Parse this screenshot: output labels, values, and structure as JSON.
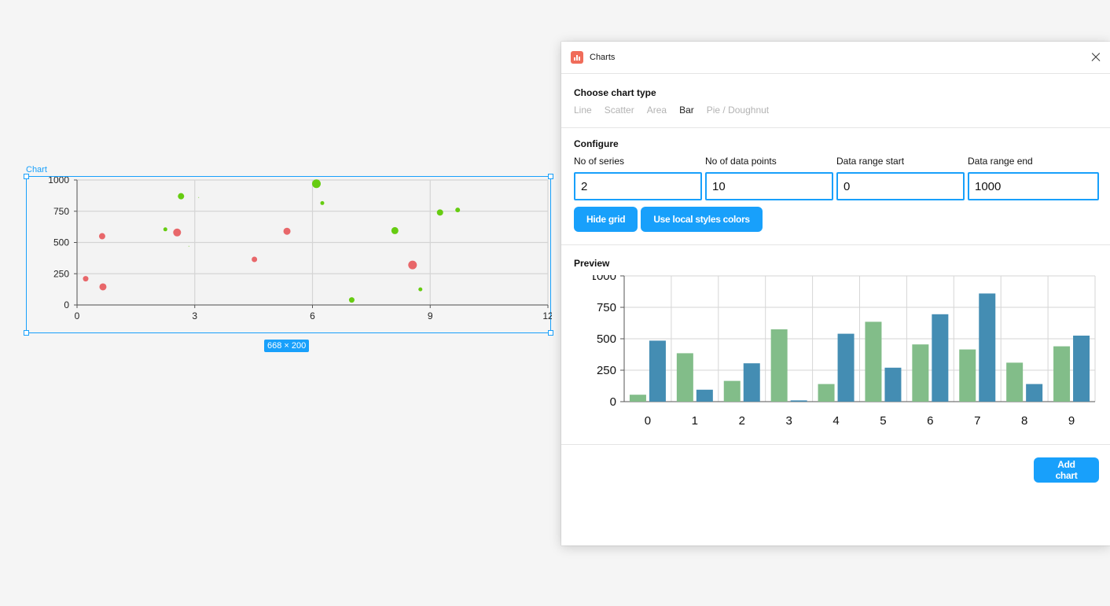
{
  "canvas": {
    "frame_label": "Chart",
    "size_badge": "668 × 200",
    "chart_data": {
      "type": "scatter",
      "x_ticks": [
        "0",
        "3",
        "6",
        "9",
        "12"
      ],
      "y_ticks": [
        "1000",
        "750",
        "500",
        "250",
        "0"
      ],
      "xlim": [
        0,
        12
      ],
      "ylim": [
        0,
        1000
      ],
      "grid": true,
      "series": [
        {
          "color": "#e8676a",
          "points": [
            {
              "x": 0.22,
              "y": 210,
              "r": 3.5
            },
            {
              "x": 0.64,
              "y": 550,
              "r": 4
            },
            {
              "x": 0.66,
              "y": 145,
              "r": 4.5
            },
            {
              "x": 2.55,
              "y": 580,
              "r": 5
            },
            {
              "x": 4.52,
              "y": 365,
              "r": 3.5
            },
            {
              "x": 5.35,
              "y": 590,
              "r": 4.5
            },
            {
              "x": 8.55,
              "y": 320,
              "r": 5.5
            }
          ]
        },
        {
          "color": "#66cc11",
          "points": [
            {
              "x": 2.25,
              "y": 605,
              "r": 2.5
            },
            {
              "x": 2.65,
              "y": 870,
              "r": 4
            },
            {
              "x": 2.85,
              "y": 470,
              "r": 0.5
            },
            {
              "x": 3.1,
              "y": 860,
              "r": 0.5
            },
            {
              "x": 6.1,
              "y": 970,
              "r": 5.5
            },
            {
              "x": 6.25,
              "y": 815,
              "r": 2.5
            },
            {
              "x": 7.0,
              "y": 40,
              "r": 3.5
            },
            {
              "x": 8.1,
              "y": 595,
              "r": 4.5
            },
            {
              "x": 8.75,
              "y": 125,
              "r": 2.5
            },
            {
              "x": 9.25,
              "y": 740,
              "r": 4
            },
            {
              "x": 9.7,
              "y": 760,
              "r": 3
            }
          ]
        }
      ]
    }
  },
  "panel": {
    "title": "Charts",
    "choose_title": "Choose chart type",
    "chart_types": [
      "Line",
      "Scatter",
      "Area",
      "Bar",
      "Pie / Doughnut"
    ],
    "active_type": "Bar",
    "configure_title": "Configure",
    "fields": [
      {
        "label": "No of series",
        "value": "2"
      },
      {
        "label": "No of data points",
        "value": "10"
      },
      {
        "label": "Data range start",
        "value": "0"
      },
      {
        "label": "Data range end",
        "value": "1000"
      }
    ],
    "hide_grid_label": "Hide grid",
    "local_styles_label": "Use local styles colors",
    "preview_title": "Preview",
    "add_chart_label": "Add chart"
  },
  "chart_data": {
    "type": "bar",
    "categories": [
      "0",
      "1",
      "2",
      "3",
      "4",
      "5",
      "6",
      "7",
      "8",
      "9"
    ],
    "y_ticks": [
      "1000",
      "750",
      "500",
      "250",
      "0"
    ],
    "ylim": [
      0,
      1000
    ],
    "grid": true,
    "series": [
      {
        "color": "#82bd89",
        "values": [
          55,
          385,
          165,
          575,
          140,
          635,
          455,
          415,
          310,
          440
        ]
      },
      {
        "color": "#448db3",
        "values": [
          485,
          95,
          305,
          10,
          540,
          270,
          695,
          860,
          140,
          525
        ]
      }
    ]
  }
}
